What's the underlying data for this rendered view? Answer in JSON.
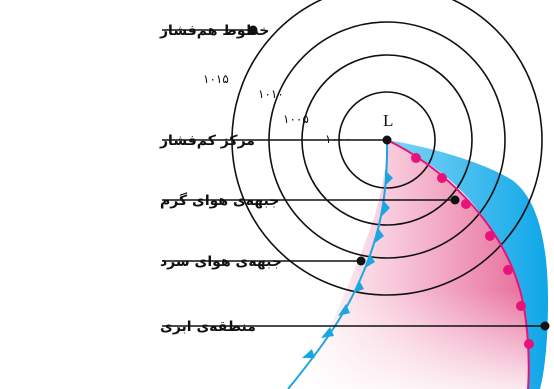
{
  "labels": {
    "isobars": "خطوط هم‌فشار",
    "low_pressure_center": "مرکز کم‌فشار",
    "warm_front": "جبهه‌ی هوای گرم",
    "cold_front": "جبهه‌ی هوای سرد",
    "cloud_zone": "منطقه‌ی ابری"
  },
  "center_symbol": "L",
  "isobar_values": [
    "۱۰۱۵",
    "۱۰۱۰",
    "۱۰۰۵",
    "۱۰۰۰"
  ],
  "colors": {
    "isobar_line": "#111111",
    "cold_front": "#1aa6e0",
    "warm_front": "#e8137a",
    "cloud_zone": "#19b4ee",
    "warm_sector": "#ea7fa6"
  }
}
